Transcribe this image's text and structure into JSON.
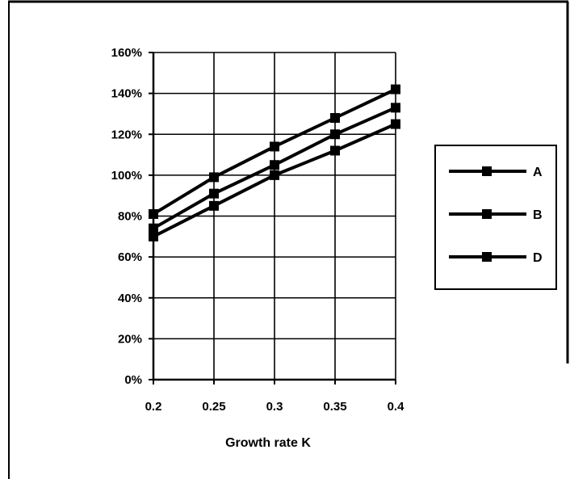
{
  "chart_data": {
    "type": "line",
    "title": "",
    "xlabel": "Growth rate K",
    "ylabel": "",
    "x": [
      0.2,
      0.25,
      0.3,
      0.35,
      0.4
    ],
    "x_tick_labels": [
      "0.2",
      "0.25",
      "0.3",
      "0.35",
      "0.4"
    ],
    "ylim": [
      0,
      1.6
    ],
    "y_ticks": [
      0,
      0.2,
      0.4,
      0.6,
      0.8,
      1.0,
      1.2,
      1.4,
      1.6
    ],
    "y_tick_labels": [
      "0%",
      "20%",
      "40%",
      "60%",
      "80%",
      "100%",
      "120%",
      "140%",
      "160%"
    ],
    "grid": true,
    "legend_position": "right",
    "series": [
      {
        "name": "A",
        "values": [
          0.81,
          0.99,
          1.14,
          1.28,
          1.42
        ]
      },
      {
        "name": "B",
        "values": [
          0.74,
          0.91,
          1.05,
          1.2,
          1.33
        ]
      },
      {
        "name": "D",
        "values": [
          0.7,
          0.85,
          1.0,
          1.12,
          1.25
        ]
      }
    ],
    "color": "#000000"
  }
}
